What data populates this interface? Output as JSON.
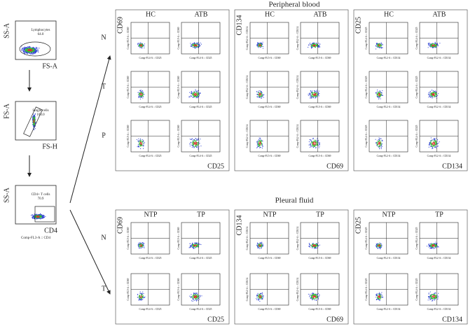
{
  "gating": [
    {
      "y_axis": "SS-A",
      "x_axis": "FS-A",
      "gate": "Lymphocytes",
      "percent": "64.0"
    },
    {
      "y_axis": "FS-A",
      "x_axis": "FS-H",
      "gate": "Single cells",
      "percent": "100.0"
    },
    {
      "y_axis": "SS-A",
      "x_axis": "CD4",
      "gate": "CD4+ T cells",
      "percent": "70.9",
      "x_channel": "Comp-FL3-A :: CD4"
    }
  ],
  "sections": [
    {
      "title": "Peripheral blood",
      "rows": [
        "N",
        "T",
        "P"
      ],
      "groups": [
        {
          "y_marker": "CD69",
          "x_marker": "CD25",
          "columns": [
            "HC",
            "ATB"
          ],
          "y_channel": "Comp-FL5-A :: CD69",
          "x_channel": "Comp-FL4-A :: CD25"
        },
        {
          "y_marker": "CD134",
          "x_marker": "CD69",
          "columns": [
            "HC",
            "ATB"
          ],
          "y_channel": "Comp-FL2-A :: CD134",
          "x_channel": "Comp-FL5-A :: CD69"
        },
        {
          "y_marker": "CD25",
          "x_marker": "CD134",
          "columns": [
            "HC",
            "ATB"
          ],
          "y_channel": "Comp-FL4-A :: CD25",
          "x_channel": "Comp-FL2-A :: CD134"
        }
      ]
    },
    {
      "title": "Pleural fluid",
      "rows": [
        "N",
        "T"
      ],
      "groups": [
        {
          "y_marker": "CD69",
          "x_marker": "CD25",
          "columns": [
            "NTP",
            "TP"
          ],
          "y_channel": "Comp-FL5-A :: CD69",
          "x_channel": "Comp-FL4-A :: CD25"
        },
        {
          "y_marker": "CD134",
          "x_marker": "CD69",
          "columns": [
            "NTP",
            "TP"
          ],
          "y_channel": "Comp-FL2-A :: CD134",
          "x_channel": "Comp-FL5-A :: CD69"
        },
        {
          "y_marker": "CD25",
          "x_marker": "CD134",
          "columns": [
            "NTP",
            "TP"
          ],
          "y_channel": "Comp-FL4-A :: CD25",
          "x_channel": "Comp-FL2-A :: CD134"
        }
      ]
    }
  ]
}
